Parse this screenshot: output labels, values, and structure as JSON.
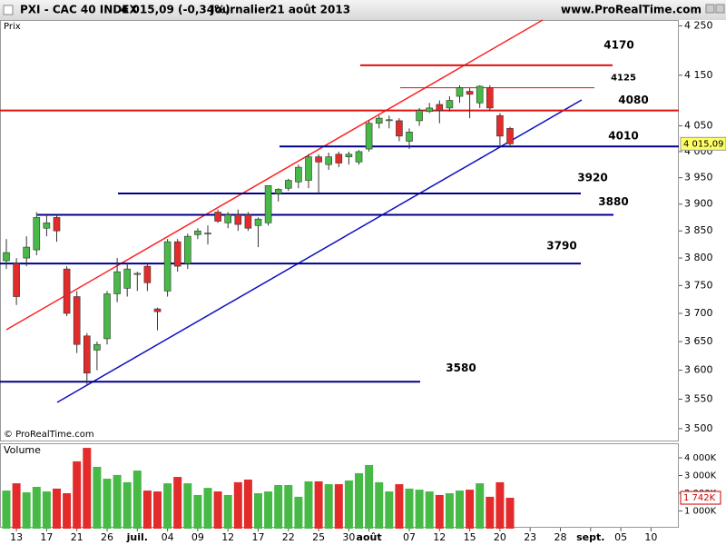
{
  "header": {
    "symbol": "PXI - CAC 40 INDEX",
    "quote": "4 015,09 (-0,34%)",
    "period": "Journalier",
    "date": "21 août 2013",
    "site": "www.ProRealTime.com"
  },
  "chart_data": {
    "type": "candlestick",
    "price_label": "Prix",
    "volume_label": "Volume",
    "copyright": "© ProRealTime.com",
    "log_scale": true,
    "up_color": "#46b946",
    "down_color": "#e32b2b",
    "categories": [
      null,
      "13",
      null,
      null,
      "17",
      null,
      null,
      "21",
      null,
      null,
      "26",
      null,
      null,
      "juil.",
      null,
      null,
      "04",
      null,
      null,
      "09",
      null,
      null,
      "12",
      null,
      null,
      "17",
      null,
      null,
      "22",
      null,
      null,
      "25",
      null,
      null,
      "30",
      null,
      "août",
      null,
      null,
      null,
      "07",
      null,
      null,
      "12",
      null,
      null,
      "15",
      null,
      null,
      "20",
      null,
      null,
      "23",
      null,
      null,
      "28",
      null,
      null,
      "sept.",
      null,
      null,
      "05",
      null,
      null,
      "10",
      null
    ],
    "open": [
      3795,
      3790,
      3800,
      3815,
      3855,
      3875,
      3780,
      3730,
      3660,
      3635,
      3655,
      3735,
      3745,
      3770,
      3785,
      3708,
      3740,
      3830,
      3790,
      3843,
      3845,
      3885,
      3865,
      3880,
      3880,
      3860,
      3865,
      3920,
      3930,
      3942,
      3945,
      3990,
      3975,
      3995,
      3990,
      3980,
      4005,
      4055,
      4060,
      4060,
      4020,
      4060,
      4078,
      4092,
      4085,
      4108,
      4118,
      4095,
      4125,
      4070,
      4045,
      null,
      null,
      null,
      null,
      null,
      null,
      null,
      null,
      null,
      null,
      null,
      null,
      null,
      null,
      null
    ],
    "high": [
      3835,
      3800,
      3840,
      3885,
      3880,
      3880,
      3785,
      3740,
      3665,
      3650,
      3740,
      3800,
      3790,
      3775,
      3790,
      3710,
      3835,
      3835,
      3845,
      3855,
      3860,
      3890,
      3885,
      3890,
      3885,
      3875,
      3935,
      3930,
      3948,
      3975,
      3995,
      3995,
      3998,
      4000,
      4000,
      4003,
      4060,
      4070,
      4070,
      4065,
      4045,
      4085,
      4095,
      4100,
      4108,
      4130,
      4125,
      4130,
      4130,
      4075,
      4048,
      null,
      null,
      null,
      null,
      null,
      null,
      null,
      null,
      null,
      null,
      null,
      null,
      null,
      null,
      null
    ],
    "low": [
      3780,
      3715,
      3785,
      3805,
      3840,
      3830,
      3695,
      3630,
      3575,
      3600,
      3645,
      3720,
      3730,
      3740,
      3740,
      3670,
      3730,
      3775,
      3780,
      3835,
      3825,
      3865,
      3855,
      3850,
      3850,
      3820,
      3860,
      3905,
      3925,
      3930,
      3930,
      3920,
      3965,
      3970,
      3975,
      3975,
      4000,
      4045,
      4045,
      4020,
      4005,
      4050,
      4075,
      4055,
      4078,
      4095,
      4065,
      4085,
      4080,
      4010,
      4008,
      null,
      null,
      null,
      null,
      null,
      null,
      null,
      null,
      null,
      null,
      null,
      null,
      null,
      null,
      null
    ],
    "close": [
      3810,
      3730,
      3820,
      3875,
      3865,
      3850,
      3700,
      3645,
      3595,
      3645,
      3735,
      3775,
      3780,
      3772,
      3755,
      3703,
      3830,
      3785,
      3840,
      3850,
      3846,
      3868,
      3880,
      3862,
      3855,
      3872,
      3935,
      3928,
      3945,
      3970,
      3990,
      3980,
      3990,
      3978,
      3995,
      4000,
      4055,
      4065,
      4062,
      4030,
      4038,
      4080,
      4085,
      4080,
      4100,
      4125,
      4112,
      4128,
      4085,
      4030,
      4015.09,
      null,
      null,
      null,
      null,
      null,
      null,
      null,
      null,
      null,
      null,
      null,
      null,
      null,
      null,
      null
    ],
    "last_label": "4 015,09",
    "volume": [
      2150,
      2560,
      2050,
      2360,
      2100,
      2260,
      2000,
      3800,
      4560,
      3490,
      2820,
      3030,
      2620,
      3280,
      2150,
      2100,
      2560,
      2920,
      2560,
      1900,
      2300,
      2100,
      1900,
      2620,
      2770,
      2000,
      2100,
      2460,
      2460,
      1800,
      2670,
      2670,
      2510,
      2510,
      2720,
      3130,
      3590,
      2620,
      2100,
      2510,
      2260,
      2200,
      2100,
      1900,
      2000,
      2150,
      2200,
      2560,
      1800,
      2620,
      1742,
      null,
      null,
      null,
      null,
      null,
      null,
      null,
      null,
      null,
      null,
      null,
      null,
      null,
      null,
      null
    ],
    "volume_last_label": "1 742K",
    "ylim": [
      3480,
      4262
    ],
    "yticks": [
      {
        "value": 3500,
        "label": "3 500"
      },
      {
        "value": 3550,
        "label": "3 550"
      },
      {
        "value": 3600,
        "label": "3 600"
      },
      {
        "value": 3650,
        "label": "3 650"
      },
      {
        "value": 3700,
        "label": "3 700"
      },
      {
        "value": 3750,
        "label": "3 750"
      },
      {
        "value": 3800,
        "label": "3 800"
      },
      {
        "value": 3850,
        "label": "3 850"
      },
      {
        "value": 3900,
        "label": "3 900"
      },
      {
        "value": 3950,
        "label": "3 950"
      },
      {
        "value": 4000,
        "label": "4 000"
      },
      {
        "value": 4050,
        "label": "4 050"
      },
      {
        "value": 4150,
        "label": "4 150"
      },
      {
        "value": 4250,
        "label": "4 250"
      }
    ],
    "volume_ylim": [
      0,
      4820
    ],
    "volume_ticks": [
      {
        "value": 1000,
        "label": "1 000K"
      },
      {
        "value": 2000,
        "label": "2 000K"
      },
      {
        "value": 3000,
        "label": "3 000K"
      },
      {
        "value": 4000,
        "label": "4 000K"
      }
    ],
    "levels": [
      4170,
      4125,
      4080,
      4010,
      3920,
      3880,
      3790,
      3580
    ],
    "level_colors": [
      "#e01010",
      "#e01010",
      "#e01010",
      "#00008b",
      "#00008b",
      "#00008b",
      "#00008b",
      "#00008b"
    ]
  }
}
